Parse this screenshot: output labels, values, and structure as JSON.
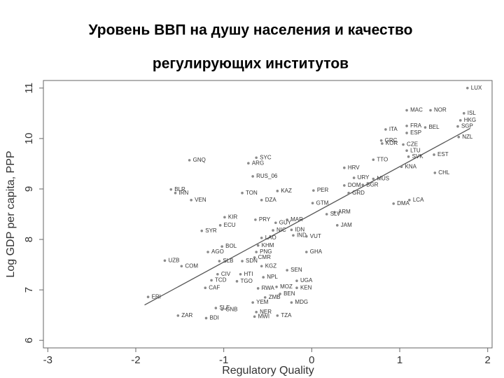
{
  "chart_data": {
    "type": "scatter",
    "title_lines": [
      "Уровень ВВП на душу населения и качество",
      "регулирующих институтов"
    ],
    "x_label": "Regulatory Quality",
    "y_label": "Log GDP per capita, PPP",
    "xlim": [
      -3.05,
      2.05
    ],
    "ylim": [
      5.85,
      11.15
    ],
    "xticks": [
      -3,
      -2,
      -1,
      0,
      1,
      2
    ],
    "yticks": [
      6,
      7,
      8,
      9,
      10,
      11
    ],
    "color": "#8a8a8a",
    "fit_color": "#555555",
    "fit": {
      "x": [
        -1.9,
        1.8
      ],
      "y": [
        6.7,
        10.2
      ]
    },
    "labels": [
      "LUX",
      "MAC",
      "NOR",
      "HKG",
      "SGP",
      "ISL",
      "FRA",
      "BEL",
      "ITA",
      "ESP",
      "NZL",
      "GRC",
      "KOR",
      "EST",
      "CZE",
      "LTU",
      "SVK",
      "KNA",
      "CHL",
      "TTO",
      "HRV",
      "URY",
      "MUS",
      "BGR",
      "DOM",
      "SYC",
      "ARG",
      "GNQ",
      "RUS_06",
      "BLR",
      "IRN",
      "VEN",
      "TON",
      "KAZ",
      "DZA",
      "PER",
      "ARM",
      "GRD",
      "PRY",
      "ECU",
      "KIR",
      "SYR",
      "JAM",
      "DMA",
      "LCA",
      "BOL",
      "KHM",
      "AGO",
      "PNG",
      "UZB",
      "COM",
      "CMR",
      "GHA",
      "KGZ",
      "SEN",
      "CIV",
      "HTI",
      "NPL",
      "UGA",
      "TCD",
      "TGO",
      "CAF",
      "KEN",
      "BEN",
      "ZMB",
      "MDG",
      "YEM",
      "ERI",
      "SLE",
      "GNB",
      "NER",
      "ZAR",
      "BDI",
      "MWI",
      "TZA",
      "LAO",
      "NIC",
      "IDN",
      "IND",
      "VUT",
      "GTM",
      "SLV",
      "MAR",
      "GUY",
      "SDN",
      "RWA",
      "MOZ",
      "SLB"
    ],
    "x": [
      1.77,
      1.08,
      1.35,
      1.69,
      1.66,
      1.73,
      1.08,
      1.29,
      0.84,
      1.08,
      1.67,
      0.79,
      0.8,
      1.39,
      1.04,
      1.08,
      1.1,
      1.02,
      1.4,
      0.7,
      0.37,
      0.48,
      0.7,
      0.58,
      0.37,
      -0.63,
      -0.72,
      -1.39,
      -0.67,
      -1.6,
      -1.55,
      -1.37,
      -0.79,
      -0.39,
      -0.57,
      0.02,
      0.26,
      0.42,
      -0.64,
      -1.04,
      -0.99,
      -1.25,
      0.29,
      0.93,
      1.11,
      -1.02,
      -0.61,
      -1.18,
      -0.63,
      -1.67,
      -1.48,
      -0.65,
      -0.06,
      -0.57,
      -0.28,
      -1.07,
      -0.81,
      -0.55,
      -0.17,
      -1.14,
      -0.85,
      -1.21,
      -0.17,
      -0.36,
      -0.53,
      -0.23,
      -0.67,
      -1.86,
      -1.09,
      -1.02,
      -0.63,
      -1.52,
      -1.2,
      -0.65,
      -0.39,
      -0.57,
      -0.44,
      -0.23,
      -0.21,
      -0.06,
      0.01,
      0.17,
      -0.28,
      -0.41,
      -0.79,
      -0.61,
      -0.4,
      -1.05
    ],
    "y": [
      11.0,
      10.56,
      10.56,
      10.36,
      10.24,
      10.5,
      10.25,
      10.22,
      10.18,
      10.11,
      10.03,
      9.96,
      9.9,
      9.68,
      9.88,
      9.76,
      9.64,
      9.44,
      9.32,
      9.58,
      9.42,
      9.22,
      9.2,
      9.08,
      9.07,
      9.62,
      9.51,
      9.57,
      9.25,
      8.99,
      8.92,
      8.78,
      8.92,
      8.96,
      8.78,
      8.97,
      8.54,
      8.92,
      8.39,
      8.28,
      8.44,
      8.17,
      8.28,
      8.71,
      8.78,
      7.86,
      7.88,
      7.75,
      7.75,
      7.58,
      7.47,
      7.64,
      7.75,
      7.47,
      7.39,
      7.31,
      7.31,
      7.25,
      7.18,
      7.19,
      7.17,
      7.04,
      7.04,
      6.92,
      6.85,
      6.75,
      6.75,
      6.86,
      6.64,
      6.61,
      6.56,
      6.49,
      6.44,
      6.47,
      6.49,
      8.03,
      8.18,
      8.19,
      8.08,
      8.06,
      8.72,
      8.5,
      8.39,
      8.33,
      7.57,
      7.03,
      7.06,
      7.57
    ]
  }
}
